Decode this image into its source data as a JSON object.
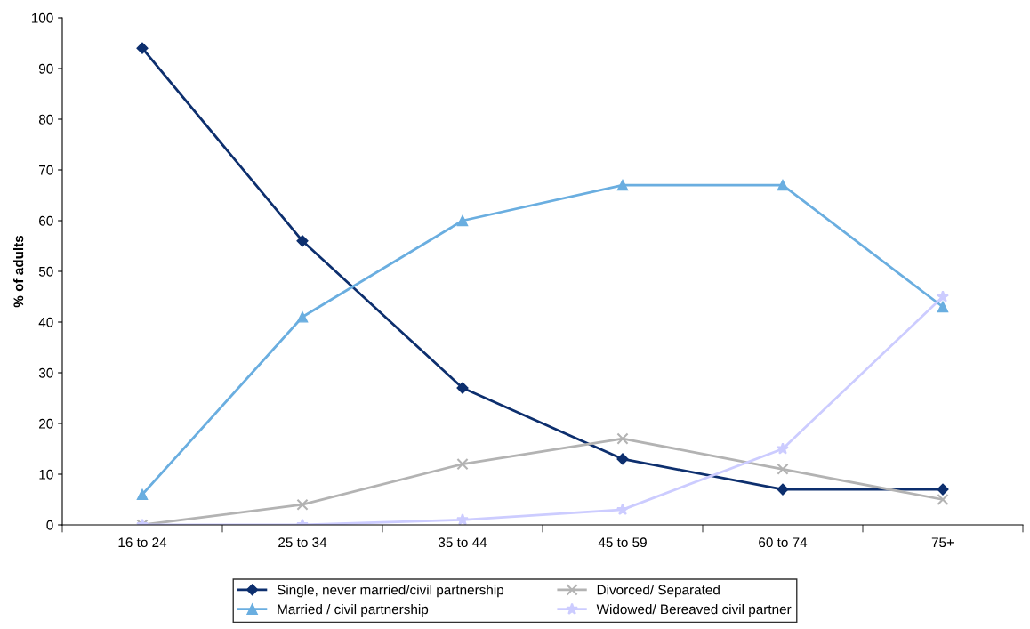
{
  "chart_data": {
    "type": "line",
    "ylabel": "% of adults",
    "categories": [
      "16 to 24",
      "25 to 34",
      "35 to 44",
      "45 to 59",
      "60 to 74",
      "75+"
    ],
    "series": [
      {
        "name": "Single, never married/civil partnership",
        "color": "#0d2f6e",
        "marker": "diamond",
        "values": [
          94,
          56,
          27,
          13,
          7,
          7
        ]
      },
      {
        "name": "Married / civil partnership",
        "color": "#6aaee0",
        "marker": "triangle",
        "values": [
          6,
          41,
          60,
          67,
          67,
          43
        ]
      },
      {
        "name": "Divorced/ Separated",
        "color": "#b3b3b3",
        "marker": "cross",
        "values": [
          0,
          4,
          12,
          17,
          11,
          5
        ]
      },
      {
        "name": "Widowed/ Bereaved civil partner",
        "color": "#ccccff",
        "marker": "star",
        "values": [
          0,
          0,
          1,
          3,
          15,
          45
        ]
      }
    ],
    "ylim": [
      0,
      100
    ],
    "yticks": [
      0,
      10,
      20,
      30,
      40,
      50,
      60,
      70,
      80,
      90,
      100
    ],
    "grid": false,
    "legend": "bottom",
    "line_style": "solid"
  }
}
